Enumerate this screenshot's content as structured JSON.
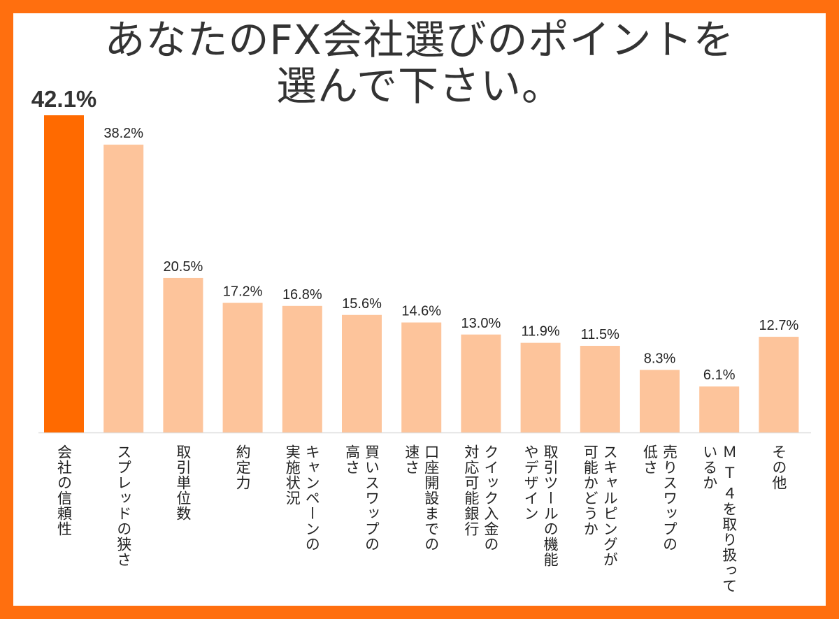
{
  "colors": {
    "frame": "#ff6f0f",
    "highlight_bar": "#ff6a00",
    "bar": "#fdc49b",
    "text": "#222222",
    "axis": "#dddddd"
  },
  "title": {
    "line1": "あなたのFX会社選びのポイントを",
    "line2": "選んで下さい。"
  },
  "chart_data": {
    "type": "bar",
    "title": "あなたのFX会社選びのポイントを選んで下さい。",
    "unit": "%",
    "ylim": [
      0,
      42.1
    ],
    "grid": false,
    "legend": "none",
    "highlight_index": 0,
    "categories": [
      [
        "会社の信頼性"
      ],
      [
        "スプレッドの狭さ"
      ],
      [
        "取引単位数"
      ],
      [
        "約定力"
      ],
      [
        "キャンペーンの",
        "実施状況"
      ],
      [
        "買いスワップの",
        "高さ"
      ],
      [
        "口座開設までの",
        "速さ"
      ],
      [
        "クイック入金の",
        "対応可能銀行"
      ],
      [
        "取引ツールの機能",
        "やデザイン"
      ],
      [
        "スキャルピングが",
        "可能かどうか"
      ],
      [
        "売りスワップの",
        "低さ"
      ],
      [
        "Ｍ Ｔ ４を取り扱って",
        "いるか"
      ],
      [
        "その他"
      ]
    ],
    "values": [
      42.1,
      38.2,
      20.5,
      17.2,
      16.8,
      15.6,
      14.6,
      13.0,
      11.9,
      11.5,
      8.3,
      6.1,
      12.7
    ],
    "value_labels": [
      "42.1%",
      "38.2%",
      "20.5%",
      "17.2%",
      "16.8%",
      "15.6%",
      "14.6%",
      "13.0%",
      "11.9%",
      "11.5%",
      "8.3%",
      "6.1%",
      "12.7%"
    ]
  }
}
